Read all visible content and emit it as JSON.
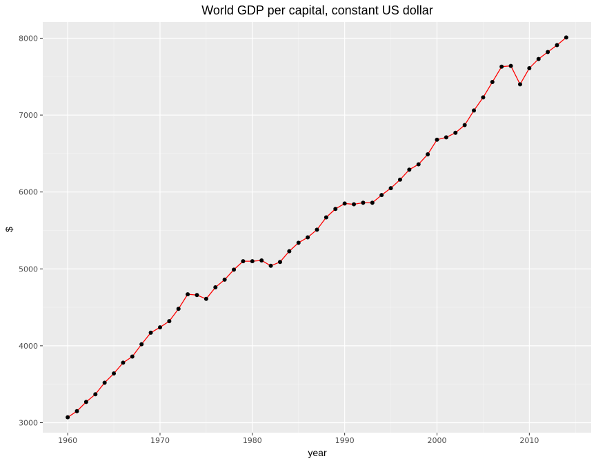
{
  "chart_data": {
    "type": "line",
    "title": "World GDP per capital, constant US dollar",
    "xlabel": "year",
    "ylabel": "$",
    "xlim": [
      1957.3,
      2016.7
    ],
    "ylim": [
      2870,
      8210
    ],
    "x_ticks": [
      1960,
      1970,
      1980,
      1990,
      2000,
      2010
    ],
    "y_ticks": [
      3000,
      4000,
      5000,
      6000,
      7000,
      8000
    ],
    "grid": true,
    "series": [
      {
        "line_color": "#ff0000",
        "point_color": "#000000",
        "x": [
          1960,
          1961,
          1962,
          1963,
          1964,
          1965,
          1966,
          1967,
          1968,
          1969,
          1970,
          1971,
          1972,
          1973,
          1974,
          1975,
          1976,
          1977,
          1978,
          1979,
          1980,
          1981,
          1982,
          1983,
          1984,
          1985,
          1986,
          1987,
          1988,
          1989,
          1990,
          1991,
          1992,
          1993,
          1994,
          1995,
          1996,
          1997,
          1998,
          1999,
          2000,
          2001,
          2002,
          2003,
          2004,
          2005,
          2006,
          2007,
          2008,
          2009,
          2010,
          2011,
          2012,
          2013,
          2014
        ],
        "values": [
          3070,
          3150,
          3270,
          3370,
          3520,
          3640,
          3780,
          3860,
          4020,
          4170,
          4240,
          4320,
          4480,
          4670,
          4660,
          4610,
          4760,
          4860,
          4990,
          5100,
          5100,
          5110,
          5040,
          5090,
          5230,
          5340,
          5410,
          5510,
          5670,
          5780,
          5850,
          5840,
          5860,
          5860,
          5960,
          6050,
          6160,
          6290,
          6360,
          6490,
          6680,
          6710,
          6770,
          6870,
          7060,
          7230,
          7430,
          7630,
          7640,
          7400,
          7610,
          7730,
          7820,
          7910,
          8010
        ]
      }
    ]
  }
}
